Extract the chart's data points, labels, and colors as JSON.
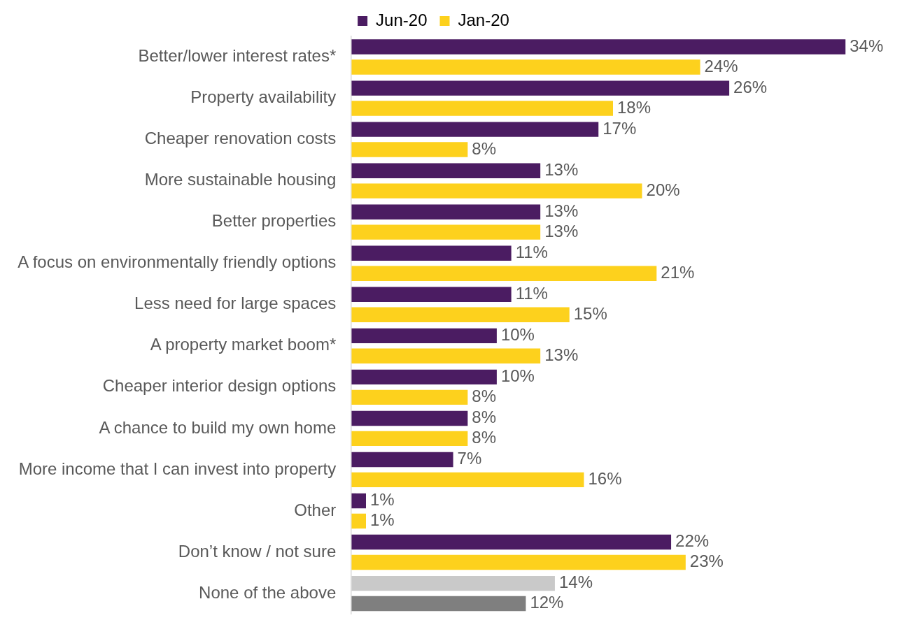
{
  "chart_data": {
    "type": "bar",
    "orientation": "horizontal",
    "legend": "top",
    "categories": [
      "Better/lower interest rates*",
      "Property availability",
      "Cheaper renovation costs",
      "More sustainable housing",
      "Better properties",
      "A focus on environmentally friendly options",
      "Less need for large spaces",
      "A property market boom*",
      "Cheaper interior design options",
      "A chance to build my own home",
      "More income that I can invest into property",
      "Other",
      "Don’t know / not sure",
      "None of the above"
    ],
    "series": [
      {
        "name": "Jun-20",
        "color": "#4b1c62",
        "colors": [
          "#4b1c62",
          "#4b1c62",
          "#4b1c62",
          "#4b1c62",
          "#4b1c62",
          "#4b1c62",
          "#4b1c62",
          "#4b1c62",
          "#4b1c62",
          "#4b1c62",
          "#4b1c62",
          "#4b1c62",
          "#4b1c62",
          "#c9c9c9"
        ],
        "values": [
          34,
          26,
          17,
          13,
          13,
          11,
          11,
          10,
          10,
          8,
          7,
          1,
          22,
          14
        ],
        "value_labels": [
          "34%",
          "26%",
          "17%",
          "13%",
          "13%",
          "11%",
          "11%",
          "10%",
          "10%",
          "8%",
          "7%",
          "1%",
          "22%",
          "14%"
        ]
      },
      {
        "name": "Jan-20",
        "color": "#fdd11d",
        "colors": [
          "#fdd11d",
          "#fdd11d",
          "#fdd11d",
          "#fdd11d",
          "#fdd11d",
          "#fdd11d",
          "#fdd11d",
          "#fdd11d",
          "#fdd11d",
          "#fdd11d",
          "#fdd11d",
          "#fdd11d",
          "#fdd11d",
          "#7f7f7f"
        ],
        "values": [
          24,
          18,
          8,
          20,
          13,
          21,
          15,
          13,
          8,
          8,
          16,
          1,
          23,
          12
        ],
        "value_labels": [
          "24%",
          "18%",
          "8%",
          "20%",
          "13%",
          "21%",
          "15%",
          "13%",
          "8%",
          "8%",
          "16%",
          "1%",
          "23%",
          "12%"
        ]
      }
    ]
  }
}
